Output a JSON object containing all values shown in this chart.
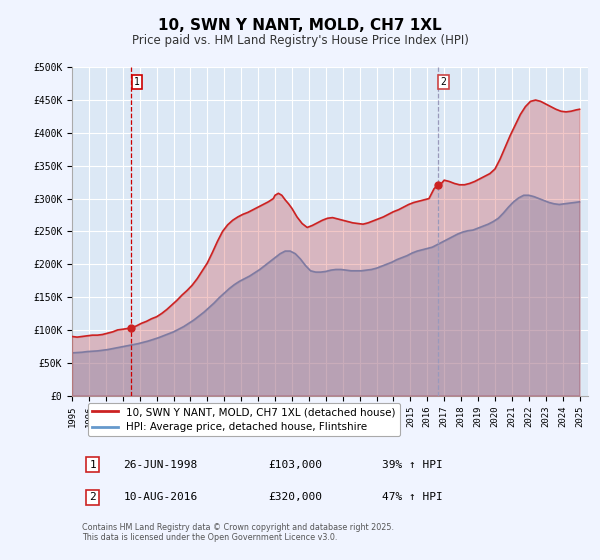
{
  "title": "10, SWN Y NANT, MOLD, CH7 1XL",
  "subtitle": "Price paid vs. HM Land Registry's House Price Index (HPI)",
  "bg_color": "#f0f4ff",
  "plot_bg_color": "#dce8f5",
  "grid_color": "#ffffff",
  "ylim": [
    0,
    500000
  ],
  "yticks": [
    0,
    50000,
    100000,
    150000,
    200000,
    250000,
    300000,
    350000,
    400000,
    450000,
    500000
  ],
  "ytick_labels": [
    "£0",
    "£50K",
    "£100K",
    "£150K",
    "£200K",
    "£250K",
    "£300K",
    "£350K",
    "£400K",
    "£450K",
    "£500K"
  ],
  "xlim_start": 1995.0,
  "xlim_end": 2025.5,
  "xticks": [
    1995,
    1996,
    1997,
    1998,
    1999,
    2000,
    2001,
    2002,
    2003,
    2004,
    2005,
    2006,
    2007,
    2008,
    2009,
    2010,
    2011,
    2012,
    2013,
    2014,
    2015,
    2016,
    2017,
    2018,
    2019,
    2020,
    2021,
    2022,
    2023,
    2024,
    2025
  ],
  "sale1_x": 1998.48,
  "sale1_y": 103000,
  "sale1_label": "1",
  "sale1_vline_color": "#cc0000",
  "sale2_x": 2016.61,
  "sale2_y": 320000,
  "sale2_label": "2",
  "sale2_vline_color": "#9999bb",
  "red_line_color": "#cc2222",
  "blue_line_color": "#6699cc",
  "legend_label_red": "10, SWN Y NANT, MOLD, CH7 1XL (detached house)",
  "legend_label_blue": "HPI: Average price, detached house, Flintshire",
  "annot1_date": "26-JUN-1998",
  "annot1_price": "£103,000",
  "annot1_hpi": "39% ↑ HPI",
  "annot2_date": "10-AUG-2016",
  "annot2_price": "£320,000",
  "annot2_hpi": "47% ↑ HPI",
  "footer": "Contains HM Land Registry data © Crown copyright and database right 2025.\nThis data is licensed under the Open Government Licence v3.0.",
  "red_x": [
    1995.0,
    1995.3,
    1995.6,
    1995.9,
    1996.2,
    1996.5,
    1996.8,
    1997.1,
    1997.4,
    1997.7,
    1998.0,
    1998.48,
    1998.8,
    1999.1,
    1999.4,
    1999.7,
    2000.0,
    2000.3,
    2000.6,
    2000.9,
    2001.2,
    2001.5,
    2001.8,
    2002.1,
    2002.4,
    2002.7,
    2003.0,
    2003.3,
    2003.6,
    2003.9,
    2004.2,
    2004.5,
    2004.8,
    2005.1,
    2005.4,
    2005.7,
    2006.0,
    2006.3,
    2006.6,
    2006.9,
    2007.0,
    2007.2,
    2007.4,
    2007.6,
    2007.8,
    2008.0,
    2008.3,
    2008.6,
    2008.9,
    2009.2,
    2009.5,
    2009.8,
    2010.1,
    2010.4,
    2010.7,
    2011.0,
    2011.3,
    2011.6,
    2011.9,
    2012.2,
    2012.5,
    2012.8,
    2013.1,
    2013.4,
    2013.7,
    2014.0,
    2014.3,
    2014.6,
    2014.9,
    2015.2,
    2015.5,
    2015.8,
    2016.1,
    2016.4,
    2016.61,
    2016.8,
    2017.0,
    2017.3,
    2017.6,
    2017.9,
    2018.2,
    2018.5,
    2018.8,
    2019.1,
    2019.4,
    2019.7,
    2020.0,
    2020.3,
    2020.6,
    2020.9,
    2021.2,
    2021.5,
    2021.8,
    2022.1,
    2022.4,
    2022.7,
    2023.0,
    2023.3,
    2023.6,
    2023.9,
    2024.2,
    2024.5,
    2024.8,
    2025.0
  ],
  "red_y": [
    90000,
    89000,
    90000,
    91000,
    92000,
    92000,
    93000,
    95000,
    97000,
    100000,
    101000,
    103000,
    106000,
    110000,
    113000,
    117000,
    120000,
    125000,
    131000,
    138000,
    145000,
    153000,
    160000,
    168000,
    178000,
    190000,
    202000,
    218000,
    235000,
    250000,
    260000,
    267000,
    272000,
    276000,
    279000,
    283000,
    287000,
    291000,
    295000,
    300000,
    305000,
    308000,
    305000,
    298000,
    292000,
    285000,
    272000,
    262000,
    256000,
    259000,
    263000,
    267000,
    270000,
    271000,
    269000,
    267000,
    265000,
    263000,
    262000,
    261000,
    263000,
    266000,
    269000,
    272000,
    276000,
    280000,
    283000,
    287000,
    291000,
    294000,
    296000,
    298000,
    300000,
    315000,
    320000,
    322000,
    328000,
    326000,
    323000,
    321000,
    321000,
    323000,
    326000,
    330000,
    334000,
    338000,
    345000,
    360000,
    378000,
    396000,
    412000,
    428000,
    440000,
    448000,
    450000,
    448000,
    444000,
    440000,
    436000,
    433000,
    432000,
    433000,
    435000,
    436000
  ],
  "blue_x": [
    1995.0,
    1995.3,
    1995.6,
    1995.9,
    1996.2,
    1996.5,
    1996.8,
    1997.1,
    1997.4,
    1997.7,
    1998.0,
    1998.3,
    1998.6,
    1998.9,
    1999.2,
    1999.5,
    1999.8,
    2000.1,
    2000.4,
    2000.7,
    2001.0,
    2001.3,
    2001.6,
    2001.9,
    2002.2,
    2002.5,
    2002.8,
    2003.1,
    2003.4,
    2003.7,
    2004.0,
    2004.3,
    2004.6,
    2004.9,
    2005.2,
    2005.5,
    2005.8,
    2006.1,
    2006.4,
    2006.7,
    2007.0,
    2007.3,
    2007.6,
    2007.9,
    2008.2,
    2008.5,
    2008.8,
    2009.1,
    2009.4,
    2009.7,
    2010.0,
    2010.3,
    2010.6,
    2010.9,
    2011.2,
    2011.5,
    2011.8,
    2012.1,
    2012.4,
    2012.7,
    2013.0,
    2013.3,
    2013.6,
    2013.9,
    2014.2,
    2014.5,
    2014.8,
    2015.1,
    2015.4,
    2015.7,
    2016.0,
    2016.3,
    2016.6,
    2016.9,
    2017.2,
    2017.5,
    2017.8,
    2018.1,
    2018.4,
    2018.7,
    2019.0,
    2019.3,
    2019.6,
    2019.9,
    2020.2,
    2020.5,
    2020.8,
    2021.1,
    2021.4,
    2021.7,
    2022.0,
    2022.3,
    2022.6,
    2022.9,
    2023.2,
    2023.5,
    2023.8,
    2024.1,
    2024.4,
    2024.7,
    2025.0
  ],
  "blue_y": [
    65000,
    65500,
    66000,
    67000,
    67500,
    68000,
    69000,
    70000,
    71500,
    73000,
    74500,
    76000,
    77500,
    79000,
    81000,
    83000,
    85500,
    88000,
    91000,
    94000,
    97000,
    101000,
    105000,
    110000,
    115000,
    121000,
    127000,
    134000,
    141000,
    149000,
    156000,
    163000,
    169000,
    174000,
    178000,
    182000,
    187000,
    192000,
    198000,
    204000,
    210000,
    216000,
    220000,
    220000,
    216000,
    208000,
    198000,
    190000,
    188000,
    188000,
    189000,
    191000,
    192000,
    192000,
    191000,
    190000,
    190000,
    190000,
    191000,
    192000,
    194000,
    197000,
    200000,
    203000,
    207000,
    210000,
    213000,
    217000,
    220000,
    222000,
    224000,
    226000,
    230000,
    234000,
    238000,
    242000,
    246000,
    249000,
    251000,
    252000,
    255000,
    258000,
    261000,
    265000,
    270000,
    278000,
    287000,
    295000,
    301000,
    305000,
    305000,
    303000,
    300000,
    297000,
    294000,
    292000,
    291000,
    292000,
    293000,
    294000,
    295000
  ]
}
